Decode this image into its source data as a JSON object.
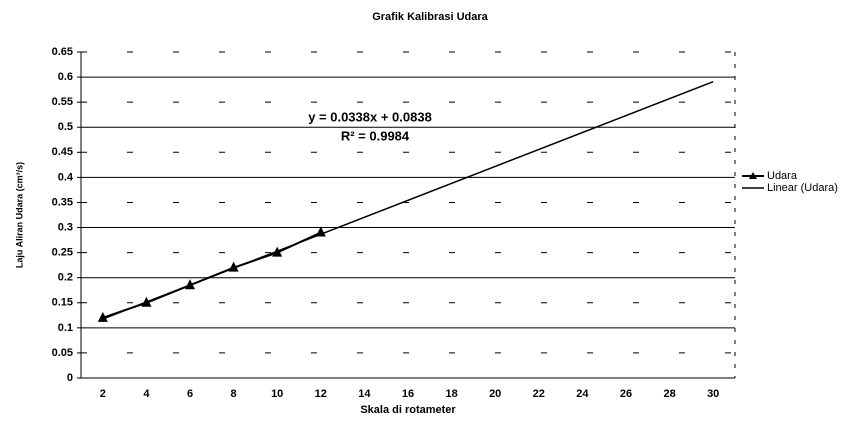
{
  "chart_data": {
    "type": "line",
    "title": "Grafik Kalibrasi Udara",
    "x_label": "Skala di rotameter",
    "y_label": "Laju Aliran Udara (cm³/s)",
    "categories": [
      "2",
      "4",
      "6",
      "8",
      "10",
      "12",
      "14",
      "16",
      "18",
      "20",
      "22",
      "24",
      "26",
      "28",
      "30"
    ],
    "series": [
      {
        "name": "Udara",
        "color": "#000000",
        "marker": "triangle",
        "values": [
          0.12,
          0.15,
          0.185,
          0.22,
          0.25,
          0.29,
          null,
          null,
          null,
          null,
          null,
          null,
          null,
          null,
          null
        ]
      }
    ],
    "trendline": {
      "name": "Linear (Udara)",
      "color": "#000000",
      "slope": 0.0338,
      "intercept": 0.0838
    },
    "annotations": [
      "y = 0.0338x + 0.0838",
      "R² = 0.9984"
    ],
    "ylim": [
      0,
      0.65
    ],
    "yticks": [
      0,
      0.05,
      0.1,
      0.15,
      0.2,
      0.25,
      0.3,
      0.35,
      0.4,
      0.45,
      0.5,
      0.55,
      0.6,
      0.65
    ],
    "grid": true,
    "legend": "right"
  }
}
